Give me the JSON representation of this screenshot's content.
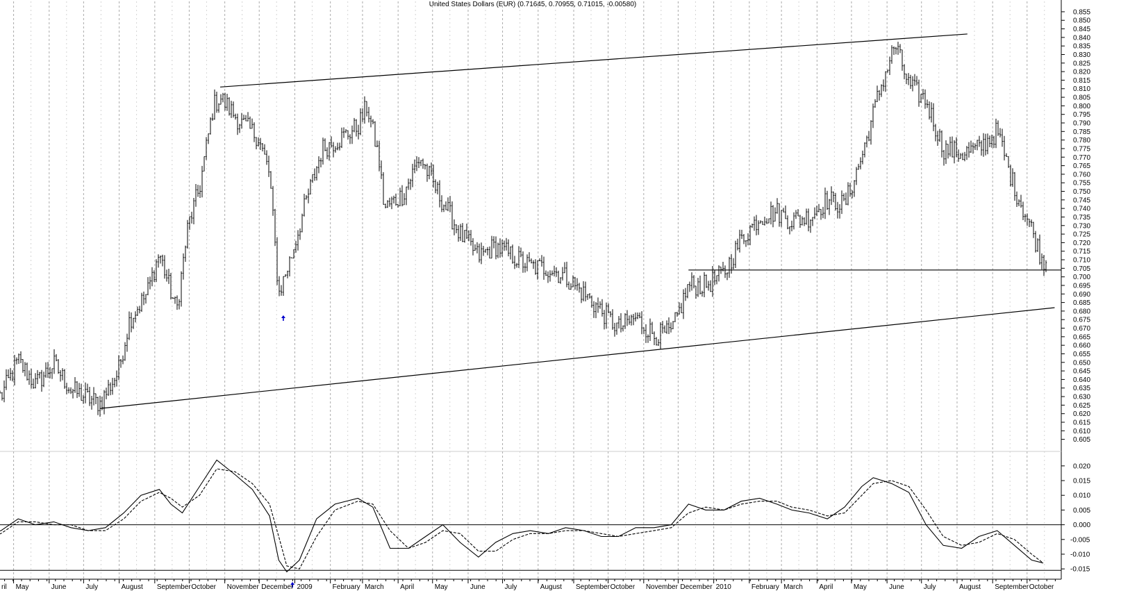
{
  "chart_data": [
    {
      "type": "ohlc",
      "title": "United States Dollars (EUR) (0.71645, 0.70955, 0.71015, -0.00580)",
      "y_ticks": [
        "0.855",
        "0.850",
        "0.845",
        "0.840",
        "0.835",
        "0.830",
        "0.825",
        "0.820",
        "0.815",
        "0.810",
        "0.805",
        "0.800",
        "0.795",
        "0.790",
        "0.785",
        "0.780",
        "0.775",
        "0.770",
        "0.765",
        "0.760",
        "0.755",
        "0.750",
        "0.745",
        "0.740",
        "0.735",
        "0.730",
        "0.725",
        "0.720",
        "0.715",
        "0.710",
        "0.705",
        "0.700",
        "0.695",
        "0.690",
        "0.685",
        "0.680",
        "0.675",
        "0.670",
        "0.665",
        "0.660",
        "0.655",
        "0.650",
        "0.645",
        "0.640",
        "0.635",
        "0.630",
        "0.625",
        "0.620",
        "0.615",
        "0.610",
        "0.605"
      ],
      "ylim": [
        0.602,
        0.857
      ],
      "x_labels": [
        "ril",
        "May",
        "June",
        "July",
        "August",
        "September",
        "October",
        "November",
        "December",
        "2009",
        "February",
        "March",
        "April",
        "May",
        "June",
        "July",
        "August",
        "September",
        "October",
        "November",
        "December",
        "2010",
        "February",
        "March",
        "April",
        "May",
        "June",
        "July",
        "August",
        "September",
        "October"
      ],
      "price_path": [
        [
          "2008-04-01",
          0.636
        ],
        [
          "2008-04-20",
          0.63
        ],
        [
          "2008-05-05",
          0.651
        ],
        [
          "2008-05-20",
          0.637
        ],
        [
          "2008-06-05",
          0.649
        ],
        [
          "2008-06-20",
          0.634
        ],
        [
          "2008-07-05",
          0.629
        ],
        [
          "2008-07-15",
          0.626
        ],
        [
          "2008-07-31",
          0.644
        ],
        [
          "2008-08-10",
          0.675
        ],
        [
          "2008-08-25",
          0.69
        ],
        [
          "2008-09-05",
          0.714
        ],
        [
          "2008-09-20",
          0.68
        ],
        [
          "2008-09-30",
          0.73
        ],
        [
          "2008-10-10",
          0.752
        ],
        [
          "2008-10-22",
          0.8
        ],
        [
          "2008-10-28",
          0.805
        ],
        [
          "2008-11-15",
          0.79
        ],
        [
          "2008-11-30",
          0.782
        ],
        [
          "2008-12-10",
          0.76
        ],
        [
          "2008-12-18",
          0.69
        ],
        [
          "2008-12-29",
          0.712
        ],
        [
          "2009-01-10",
          0.742
        ],
        [
          "2009-01-25",
          0.775
        ],
        [
          "2009-02-10",
          0.781
        ],
        [
          "2009-02-25",
          0.788
        ],
        [
          "2009-03-05",
          0.8
        ],
        [
          "2009-03-15",
          0.77
        ],
        [
          "2009-03-20",
          0.74
        ],
        [
          "2009-04-05",
          0.748
        ],
        [
          "2009-04-20",
          0.77
        ],
        [
          "2009-05-05",
          0.75
        ],
        [
          "2009-05-25",
          0.725
        ],
        [
          "2009-06-10",
          0.712
        ],
        [
          "2009-06-25",
          0.718
        ],
        [
          "2009-07-10",
          0.712
        ],
        [
          "2009-07-25",
          0.706
        ],
        [
          "2009-08-10",
          0.705
        ],
        [
          "2009-08-25",
          0.7
        ],
        [
          "2009-09-10",
          0.69
        ],
        [
          "2009-09-25",
          0.68
        ],
        [
          "2009-10-10",
          0.67
        ],
        [
          "2009-10-25",
          0.676
        ],
        [
          "2009-11-10",
          0.666
        ],
        [
          "2009-11-25",
          0.667
        ],
        [
          "2009-12-10",
          0.695
        ],
        [
          "2009-12-25",
          0.695
        ],
        [
          "2010-01-10",
          0.702
        ],
        [
          "2010-01-25",
          0.722
        ],
        [
          "2010-02-10",
          0.735
        ],
        [
          "2010-02-25",
          0.738
        ],
        [
          "2010-03-10",
          0.733
        ],
        [
          "2010-03-25",
          0.735
        ],
        [
          "2010-04-10",
          0.745
        ],
        [
          "2010-04-25",
          0.742
        ],
        [
          "2010-05-10",
          0.77
        ],
        [
          "2010-05-25",
          0.808
        ],
        [
          "2010-06-08",
          0.836
        ],
        [
          "2010-06-20",
          0.812
        ],
        [
          "2010-07-05",
          0.803
        ],
        [
          "2010-07-20",
          0.775
        ],
        [
          "2010-08-05",
          0.772
        ],
        [
          "2010-08-20",
          0.775
        ],
        [
          "2010-09-05",
          0.785
        ],
        [
          "2010-09-20",
          0.752
        ],
        [
          "2010-10-05",
          0.728
        ],
        [
          "2010-10-14",
          0.71
        ]
      ],
      "trendlines": [
        {
          "from": [
            "2008-10-28",
            0.811
          ],
          "to": [
            "2010-08-10",
            0.842
          ]
        },
        {
          "from": [
            "2008-07-15",
            0.623
          ],
          "to": [
            "2010-10-25",
            0.682
          ]
        },
        {
          "from": [
            "2009-12-10",
            0.704
          ],
          "to": [
            "2010-10-31",
            0.704
          ]
        }
      ],
      "signal_arrows": [
        "2008-12-22"
      ]
    },
    {
      "type": "line",
      "y_ticks": [
        "0.020",
        "0.015",
        "0.010",
        "0.005",
        "0.000",
        "-0.005",
        "-0.010",
        "-0.015"
      ],
      "ylim": [
        -0.0185,
        0.0235
      ],
      "series": [
        {
          "style": "solid",
          "values": [
            [
              "2008-04-01",
              -0.004
            ],
            [
              "2008-04-20",
              -0.002
            ],
            [
              "2008-05-05",
              0.002
            ],
            [
              "2008-05-20",
              0.0
            ],
            [
              "2008-06-05",
              0.001
            ],
            [
              "2008-06-20",
              -0.001
            ],
            [
              "2008-07-05",
              -0.002
            ],
            [
              "2008-07-20",
              -0.001
            ],
            [
              "2008-08-05",
              0.004
            ],
            [
              "2008-08-20",
              0.01
            ],
            [
              "2008-09-05",
              0.012
            ],
            [
              "2008-09-15",
              0.007
            ],
            [
              "2008-09-25",
              0.004
            ],
            [
              "2008-10-10",
              0.013
            ],
            [
              "2008-10-25",
              0.022
            ],
            [
              "2008-11-10",
              0.017
            ],
            [
              "2008-11-25",
              0.012
            ],
            [
              "2008-12-10",
              0.003
            ],
            [
              "2008-12-18",
              -0.012
            ],
            [
              "2008-12-25",
              -0.016
            ],
            [
              "2009-01-05",
              -0.012
            ],
            [
              "2009-01-20",
              0.002
            ],
            [
              "2009-02-05",
              0.007
            ],
            [
              "2009-02-25",
              0.009
            ],
            [
              "2009-03-10",
              0.006
            ],
            [
              "2009-03-25",
              -0.008
            ],
            [
              "2009-04-10",
              -0.008
            ],
            [
              "2009-04-25",
              -0.004
            ],
            [
              "2009-05-10",
              0.0
            ],
            [
              "2009-05-25",
              -0.006
            ],
            [
              "2009-06-10",
              -0.011
            ],
            [
              "2009-06-25",
              -0.006
            ],
            [
              "2009-07-10",
              -0.003
            ],
            [
              "2009-07-25",
              -0.002
            ],
            [
              "2009-08-10",
              -0.003
            ],
            [
              "2009-08-25",
              -0.001
            ],
            [
              "2009-09-10",
              -0.002
            ],
            [
              "2009-09-25",
              -0.004
            ],
            [
              "2009-10-10",
              -0.004
            ],
            [
              "2009-10-25",
              -0.001
            ],
            [
              "2009-11-10",
              -0.001
            ],
            [
              "2009-11-25",
              0.0
            ],
            [
              "2009-12-10",
              0.007
            ],
            [
              "2009-12-25",
              0.005
            ],
            [
              "2010-01-10",
              0.005
            ],
            [
              "2010-01-25",
              0.008
            ],
            [
              "2010-02-10",
              0.009
            ],
            [
              "2010-02-25",
              0.007
            ],
            [
              "2010-03-10",
              0.005
            ],
            [
              "2010-03-25",
              0.004
            ],
            [
              "2010-04-10",
              0.002
            ],
            [
              "2010-04-25",
              0.006
            ],
            [
              "2010-05-10",
              0.013
            ],
            [
              "2010-05-20",
              0.016
            ],
            [
              "2010-06-05",
              0.014
            ],
            [
              "2010-06-20",
              0.011
            ],
            [
              "2010-07-05",
              0.0
            ],
            [
              "2010-07-20",
              -0.007
            ],
            [
              "2010-08-05",
              -0.008
            ],
            [
              "2010-08-20",
              -0.004
            ],
            [
              "2010-09-05",
              -0.002
            ],
            [
              "2010-09-20",
              -0.007
            ],
            [
              "2010-10-05",
              -0.012
            ],
            [
              "2010-10-15",
              -0.013
            ]
          ]
        },
        {
          "style": "dashed",
          "values": [
            [
              "2008-04-01",
              -0.005
            ],
            [
              "2008-04-20",
              -0.003
            ],
            [
              "2008-05-05",
              0.001
            ],
            [
              "2008-05-20",
              0.001
            ],
            [
              "2008-06-05",
              0.0
            ],
            [
              "2008-06-20",
              0.0
            ],
            [
              "2008-07-05",
              -0.002
            ],
            [
              "2008-07-20",
              -0.002
            ],
            [
              "2008-08-05",
              0.002
            ],
            [
              "2008-08-20",
              0.008
            ],
            [
              "2008-09-05",
              0.011
            ],
            [
              "2008-09-15",
              0.009
            ],
            [
              "2008-09-25",
              0.006
            ],
            [
              "2008-10-10",
              0.01
            ],
            [
              "2008-10-25",
              0.019
            ],
            [
              "2008-11-10",
              0.018
            ],
            [
              "2008-11-25",
              0.014
            ],
            [
              "2008-12-10",
              0.007
            ],
            [
              "2008-12-18",
              -0.004
            ],
            [
              "2008-12-25",
              -0.014
            ],
            [
              "2009-01-05",
              -0.015
            ],
            [
              "2009-01-20",
              -0.004
            ],
            [
              "2009-02-05",
              0.005
            ],
            [
              "2009-02-25",
              0.008
            ],
            [
              "2009-03-10",
              0.007
            ],
            [
              "2009-03-25",
              -0.002
            ],
            [
              "2009-04-10",
              -0.008
            ],
            [
              "2009-04-25",
              -0.006
            ],
            [
              "2009-05-10",
              -0.002
            ],
            [
              "2009-05-25",
              -0.003
            ],
            [
              "2009-06-10",
              -0.009
            ],
            [
              "2009-06-25",
              -0.009
            ],
            [
              "2009-07-10",
              -0.005
            ],
            [
              "2009-07-25",
              -0.003
            ],
            [
              "2009-08-10",
              -0.003
            ],
            [
              "2009-08-25",
              -0.002
            ],
            [
              "2009-09-10",
              -0.002
            ],
            [
              "2009-09-25",
              -0.003
            ],
            [
              "2009-10-10",
              -0.004
            ],
            [
              "2009-10-25",
              -0.003
            ],
            [
              "2009-11-10",
              -0.002
            ],
            [
              "2009-11-25",
              -0.001
            ],
            [
              "2009-12-10",
              0.004
            ],
            [
              "2009-12-25",
              0.006
            ],
            [
              "2010-01-10",
              0.005
            ],
            [
              "2010-01-25",
              0.007
            ],
            [
              "2010-02-10",
              0.008
            ],
            [
              "2010-02-25",
              0.008
            ],
            [
              "2010-03-10",
              0.006
            ],
            [
              "2010-03-25",
              0.005
            ],
            [
              "2010-04-10",
              0.003
            ],
            [
              "2010-04-25",
              0.004
            ],
            [
              "2010-05-10",
              0.01
            ],
            [
              "2010-05-20",
              0.014
            ],
            [
              "2010-06-05",
              0.015
            ],
            [
              "2010-06-20",
              0.013
            ],
            [
              "2010-07-05",
              0.005
            ],
            [
              "2010-07-20",
              -0.004
            ],
            [
              "2010-08-05",
              -0.007
            ],
            [
              "2010-08-20",
              -0.006
            ],
            [
              "2010-09-05",
              -0.003
            ],
            [
              "2010-09-20",
              -0.005
            ],
            [
              "2010-10-05",
              -0.01
            ],
            [
              "2010-10-15",
              -0.013
            ]
          ]
        }
      ],
      "hlines": [
        0.0,
        -0.0155
      ],
      "signal_arrows": [
        "2008-12-30"
      ]
    }
  ],
  "colors": {
    "line": "#000000",
    "grid": "#aaaaaa",
    "arrow": "#0000cc",
    "background": "#ffffff"
  }
}
